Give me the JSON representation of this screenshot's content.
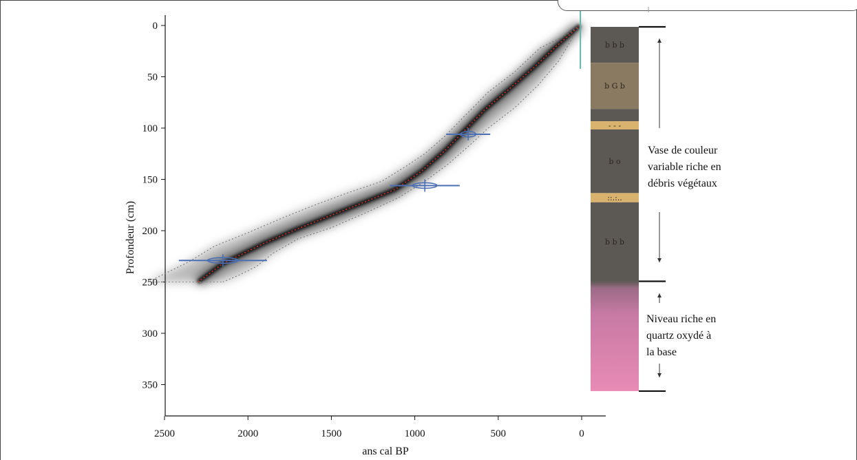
{
  "chart_data": {
    "type": "line",
    "xlabel": "ans cal BP",
    "ylabel": "Profondeur (cm)",
    "xlim": [
      2650,
      -50
    ],
    "ylim": [
      0,
      380
    ],
    "x_ticks": [
      "2500",
      "2000",
      "1500",
      "1000",
      "500",
      "0"
    ],
    "y_ticks": [
      "0",
      "50",
      "100",
      "150",
      "200",
      "250",
      "300",
      "350"
    ],
    "grid": false,
    "series": [
      {
        "type": "age-depth median",
        "color": "#d9302a",
        "x": [
          10,
          150,
          280,
          420,
          580,
          700,
          820,
          960,
          1120,
          1300,
          1500,
          1700,
          1900,
          2050,
          2150,
          2300
        ],
        "y": [
          0,
          20,
          40,
          60,
          82,
          102,
          122,
          142,
          160,
          172,
          185,
          198,
          212,
          224,
          232,
          250
        ]
      },
      {
        "type": "95% envelope (younger)",
        "color": "#777777",
        "x": [
          10,
          140,
          260,
          400,
          560,
          680,
          800,
          940,
          1100,
          1300,
          1500,
          1700,
          1850,
          1950,
          2050,
          2150
        ],
        "y": [
          0,
          35,
          58,
          80,
          100,
          118,
          135,
          152,
          168,
          183,
          197,
          208,
          222,
          235,
          243,
          250
        ]
      },
      {
        "type": "95% envelope (older)",
        "color": "#777777",
        "x": [
          10,
          100,
          250,
          400,
          560,
          700,
          820,
          940,
          1060,
          1200,
          1400,
          1600,
          1800,
          2000,
          2200,
          2350,
          2600
        ],
        "y": [
          0,
          10,
          22,
          45,
          65,
          88,
          108,
          125,
          138,
          152,
          163,
          175,
          188,
          202,
          215,
          230,
          250
        ]
      }
    ],
    "dates": [
      {
        "depth": 2,
        "age": 20,
        "error": 15
      },
      {
        "depth": 106,
        "age": 680,
        "error": 60
      },
      {
        "depth": 156,
        "age": 940,
        "error": 95
      },
      {
        "depth": 229,
        "age": 2150,
        "error": 120
      }
    ]
  },
  "log_units": [
    {
      "from": 0,
      "to": 35,
      "color": "#5c5954",
      "symbols": "b  b  b"
    },
    {
      "from": 35,
      "to": 80,
      "color": "#8b7a62",
      "symbols": "b G b"
    },
    {
      "from": 80,
      "to": 92,
      "color": "#5c5954",
      "symbols": ""
    },
    {
      "from": 92,
      "to": 100,
      "color": "#d9b26e",
      "symbols": "- - -"
    },
    {
      "from": 100,
      "to": 162,
      "color": "#5c5954",
      "symbols": "b   o"
    },
    {
      "from": 162,
      "to": 171,
      "color": "#d9b26e",
      "symbols": "::.:.."
    },
    {
      "from": 171,
      "to": 248,
      "color": "#5c5954",
      "symbols": "b b b"
    },
    {
      "from": 248,
      "to": 355,
      "color": "gradient-pink",
      "symbols": ""
    }
  ],
  "descriptions": [
    {
      "lines": [
        "Vase de couleur",
        "variable riche en",
        "débris végétaux"
      ]
    },
    {
      "lines": [
        "Niveau riche en",
        "quartz oxydé à",
        "la base"
      ]
    }
  ]
}
